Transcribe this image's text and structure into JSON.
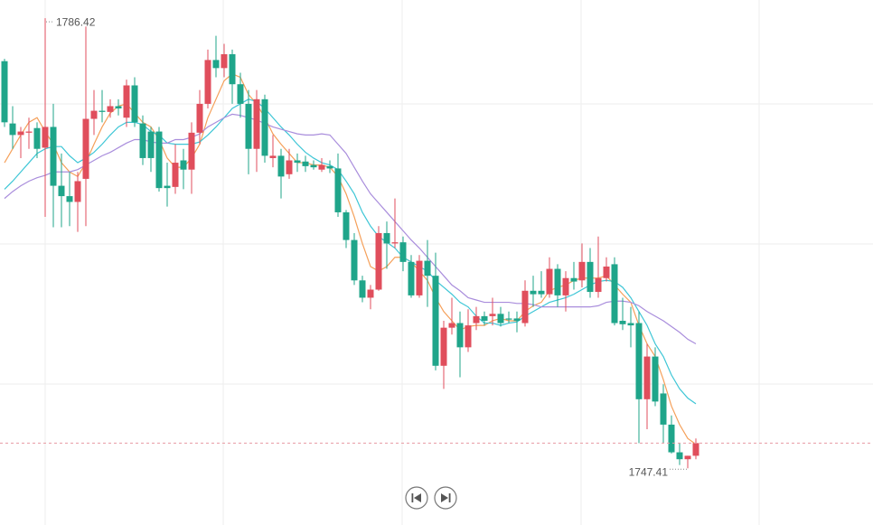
{
  "chart_data": {
    "type": "candlestick",
    "ylim": [
      1742.5,
      1788.0
    ],
    "up_color": "#e04e5c",
    "down_color": "#1fa58a",
    "open": [
      1782.7,
      1777.3,
      1776.3,
      1776.5,
      1776.9,
      1775.2,
      1777.0,
      1771.9,
      1771.0,
      1770.5,
      1772.5,
      1777.7,
      1778.4,
      1778.3,
      1778.8,
      1777.8,
      1780.6,
      1777.3,
      1776.6,
      1776.6,
      1771.9,
      1771.8,
      1774.1,
      1773.3,
      1776.5,
      1779.0,
      1782.8,
      1782.1,
      1783.3,
      1780.7,
      1779.0,
      1775.1,
      1779.4,
      1774.3,
      1774.5,
      1772.9,
      1774.1,
      1774.0,
      1773.7,
      1773.3,
      1773.6,
      1773.4,
      1769.6,
      1767.2,
      1763.7,
      1762.2,
      1762.9,
      1767.8,
      1766.9,
      1767.0,
      1765.3,
      1762.4,
      1765.4,
      1764.1,
      1756.3,
      1759.6,
      1760.0,
      1757.9,
      1760.0,
      1760.6,
      1760.6,
      1760.8,
      1760.4,
      1760.4,
      1760.0,
      1762.8,
      1762.8,
      1762.5,
      1764.7,
      1762.4,
      1763.9,
      1763.7,
      1765.3,
      1762.7,
      1763.9,
      1765.1,
      1760.2,
      1760.0,
      1760.0,
      1753.4,
      1757.1,
      1753.9,
      1751.2,
      1748.8,
      1748.2,
      1748.5
    ],
    "close": [
      1777.4,
      1776.3,
      1776.6,
      1776.6,
      1775.1,
      1777.0,
      1771.9,
      1771.0,
      1770.5,
      1772.3,
      1777.7,
      1778.4,
      1778.3,
      1778.8,
      1778.6,
      1780.6,
      1777.4,
      1774.3,
      1774.3,
      1771.7,
      1771.7,
      1773.9,
      1773.3,
      1776.5,
      1779.0,
      1782.8,
      1782.1,
      1783.3,
      1780.7,
      1779.0,
      1775.1,
      1779.4,
      1774.5,
      1774.5,
      1772.7,
      1774.1,
      1773.9,
      1773.6,
      1773.5,
      1773.7,
      1773.4,
      1769.6,
      1767.2,
      1763.7,
      1762.2,
      1762.9,
      1767.8,
      1766.9,
      1767.0,
      1765.3,
      1762.4,
      1765.4,
      1764.1,
      1756.3,
      1759.6,
      1760.0,
      1757.9,
      1759.8,
      1760.6,
      1760.2,
      1760.8,
      1760.0,
      1760.3,
      1760.2,
      1762.8,
      1762.5,
      1762.5,
      1764.7,
      1762.4,
      1763.9,
      1763.6,
      1765.3,
      1762.7,
      1763.9,
      1764.9,
      1760.0,
      1759.9,
      1759.8,
      1753.4,
      1757.1,
      1753.2,
      1751.2,
      1748.8,
      1748.2,
      1748.5,
      1749.6
    ],
    "high": [
      1782.9,
      1778.8,
      1777.0,
      1777.8,
      1777.4,
      1786.42,
      1779.0,
      1774.7,
      1773.1,
      1773.1,
      1785.7,
      1780.2,
      1780.2,
      1779.4,
      1779.4,
      1781.1,
      1781.3,
      1778.0,
      1777.0,
      1777.0,
      1773.9,
      1775.5,
      1775.1,
      1777.4,
      1780.2,
      1783.7,
      1784.9,
      1784.2,
      1783.7,
      1781.7,
      1780.2,
      1780.2,
      1779.8,
      1776.3,
      1775.1,
      1775.1,
      1774.7,
      1774.5,
      1774.1,
      1774.3,
      1774.1,
      1774.7,
      1769.8,
      1767.8,
      1764.1,
      1763.3,
      1768.4,
      1768.8,
      1770.8,
      1767.5,
      1765.9,
      1765.9,
      1767.2,
      1766.1,
      1760.2,
      1762.2,
      1761.0,
      1761.2,
      1761.4,
      1761.0,
      1762.2,
      1761.4,
      1761.0,
      1761.0,
      1763.7,
      1764.1,
      1764.5,
      1765.7,
      1765.1,
      1764.5,
      1765.3,
      1766.9,
      1766.5,
      1767.5,
      1765.7,
      1765.7,
      1762.2,
      1761.4,
      1761.0,
      1758.2,
      1757.9,
      1754.7,
      1752.0,
      1749.6,
      1748.5,
      1750.0
    ],
    "low": [
      1777.0,
      1775.1,
      1774.3,
      1775.1,
      1774.3,
      1769.2,
      1768.3,
      1768.3,
      1768.4,
      1767.9,
      1768.4,
      1776.3,
      1777.4,
      1777.8,
      1778.0,
      1777.0,
      1777.0,
      1773.7,
      1773.1,
      1771.4,
      1770.1,
      1771.2,
      1771.6,
      1771.2,
      1775.5,
      1778.6,
      1781.3,
      1781.3,
      1779.0,
      1777.8,
      1772.9,
      1773.1,
      1773.9,
      1773.5,
      1770.8,
      1772.5,
      1773.1,
      1773.1,
      1773.3,
      1773.1,
      1773.0,
      1769.2,
      1766.5,
      1763.3,
      1761.8,
      1761.2,
      1762.8,
      1764.7,
      1766.5,
      1764.5,
      1762.2,
      1762.2,
      1761.4,
      1755.9,
      1754.3,
      1759.0,
      1755.3,
      1757.5,
      1759.4,
      1759.8,
      1759.8,
      1759.7,
      1760.0,
      1759.2,
      1759.7,
      1761.4,
      1762.2,
      1762.2,
      1761.4,
      1761.0,
      1762.9,
      1763.1,
      1762.2,
      1762.2,
      1763.6,
      1759.8,
      1759.4,
      1757.9,
      1749.6,
      1750.8,
      1752.8,
      1749.6,
      1748.7,
      1747.7,
      1747.41,
      1748.2
    ],
    "ma_lines": [
      {
        "color": "#f5a05a",
        "values": [
          1773.9,
          1775.1,
          1776.3,
          1777.4,
          1777.8,
          1776.6,
          1775.5,
          1773.9,
          1773.1,
          1772.7,
          1773.9,
          1775.5,
          1777.0,
          1778.2,
          1778.8,
          1779.0,
          1778.2,
          1777.4,
          1777.0,
          1775.9,
          1774.3,
          1773.5,
          1773.5,
          1774.3,
          1775.5,
          1777.8,
          1779.4,
          1781.0,
          1781.6,
          1781.3,
          1779.8,
          1779.0,
          1777.8,
          1776.4,
          1775.5,
          1774.7,
          1773.9,
          1773.9,
          1773.7,
          1773.7,
          1773.5,
          1772.7,
          1771.2,
          1769.2,
          1766.9,
          1764.9,
          1764.5,
          1764.9,
          1765.7,
          1765.7,
          1765.3,
          1764.5,
          1763.7,
          1762.2,
          1761.0,
          1760.2,
          1759.4,
          1759.7,
          1759.8,
          1759.8,
          1760.2,
          1760.4,
          1760.2,
          1760.2,
          1761.0,
          1761.5,
          1761.8,
          1762.8,
          1763.1,
          1763.3,
          1763.7,
          1763.9,
          1763.9,
          1763.9,
          1764.1,
          1763.3,
          1762.5,
          1761.8,
          1759.8,
          1758.2,
          1757.1,
          1755.1,
          1752.8,
          1751.2,
          1750.0,
          1749.5
        ]
      },
      {
        "color": "#3ec6d6",
        "values": [
          1771.6,
          1772.3,
          1773.1,
          1773.9,
          1774.7,
          1775.1,
          1775.3,
          1775.3,
          1774.5,
          1773.9,
          1774.3,
          1774.8,
          1775.5,
          1776.3,
          1777.0,
          1777.4,
          1777.4,
          1777.2,
          1776.6,
          1776.3,
          1775.6,
          1775.5,
          1775.5,
          1775.5,
          1775.7,
          1776.3,
          1777.0,
          1777.8,
          1778.6,
          1779.0,
          1779.4,
          1779.2,
          1778.6,
          1777.8,
          1777.0,
          1776.3,
          1775.5,
          1774.8,
          1774.3,
          1773.9,
          1773.7,
          1773.3,
          1772.3,
          1771.2,
          1769.6,
          1768.4,
          1767.5,
          1767.0,
          1766.5,
          1765.7,
          1765.3,
          1764.9,
          1764.5,
          1763.7,
          1763.1,
          1762.5,
          1761.8,
          1761.4,
          1760.6,
          1760.0,
          1760.0,
          1759.8,
          1760.0,
          1760.1,
          1760.6,
          1761.0,
          1761.4,
          1761.8,
          1762.0,
          1762.2,
          1762.5,
          1762.9,
          1763.3,
          1763.6,
          1763.7,
          1763.6,
          1763.1,
          1762.2,
          1761.0,
          1759.8,
          1758.2,
          1757.1,
          1755.5,
          1754.3,
          1753.5,
          1753.0
        ]
      },
      {
        "color": "#a98ddc",
        "values": [
          1770.8,
          1771.4,
          1771.9,
          1772.3,
          1772.6,
          1772.8,
          1773.1,
          1773.1,
          1773.1,
          1773.3,
          1773.7,
          1774.1,
          1774.5,
          1774.8,
          1775.2,
          1775.6,
          1775.9,
          1775.9,
          1775.7,
          1775.6,
          1775.6,
          1775.9,
          1775.9,
          1776.1,
          1776.4,
          1777.0,
          1777.4,
          1777.8,
          1778.1,
          1778.0,
          1777.8,
          1777.6,
          1777.3,
          1777.0,
          1776.8,
          1776.6,
          1776.4,
          1776.3,
          1776.3,
          1776.4,
          1776.3,
          1775.5,
          1774.7,
          1773.5,
          1772.3,
          1771.2,
          1770.4,
          1769.6,
          1768.8,
          1768.0,
          1767.2,
          1766.5,
          1765.7,
          1764.9,
          1764.1,
          1763.3,
          1762.8,
          1762.2,
          1762.0,
          1761.8,
          1761.8,
          1761.8,
          1761.8,
          1761.7,
          1761.7,
          1761.6,
          1761.4,
          1761.4,
          1761.4,
          1761.4,
          1761.4,
          1761.4,
          1761.4,
          1761.5,
          1761.8,
          1761.9,
          1761.9,
          1761.8,
          1761.5,
          1761.0,
          1760.6,
          1760.2,
          1759.7,
          1759.2,
          1758.6,
          1758.2
        ]
      }
    ]
  }
}
